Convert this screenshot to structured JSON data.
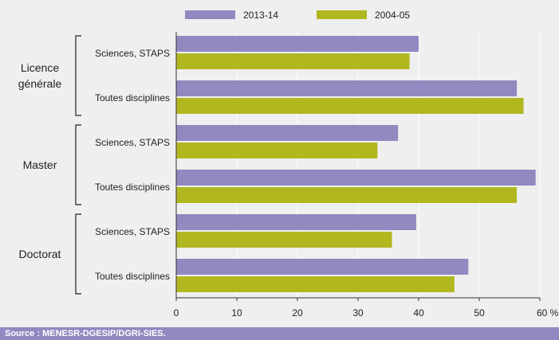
{
  "colors": {
    "series_2013": "#9189c0",
    "series_2004": "#b1b81f",
    "background": "#efefef",
    "grid": "#ffffff",
    "axis": "#333333",
    "source_bar": "#9189c0"
  },
  "source": "Source : MENESR-DGESIP/DGRI-SIES.",
  "chart_data": {
    "type": "bar",
    "orientation": "horizontal",
    "groups": [
      {
        "label": [
          "Licence",
          "générale"
        ],
        "categories": [
          "Sciences, STAPS",
          "Toutes disciplines"
        ]
      },
      {
        "label": [
          "Master"
        ],
        "categories": [
          "Sciences, STAPS",
          "Toutes disciplines"
        ]
      },
      {
        "label": [
          "Doctorat"
        ],
        "categories": [
          "Sciences, STAPS",
          "Toutes disciplines"
        ]
      }
    ],
    "categories": [
      "Sciences, STAPS",
      "Toutes disciplines",
      "Sciences, STAPS",
      "Toutes disciplines",
      "Sciences, STAPS",
      "Toutes disciplines"
    ],
    "series": [
      {
        "name": "2013-14",
        "values": [
          40,
          56.2,
          36.6,
          59.3,
          39.6,
          48.2
        ]
      },
      {
        "name": "2004-05",
        "values": [
          38.5,
          57.3,
          33.2,
          56.2,
          35.6,
          45.9
        ]
      }
    ],
    "xlim": [
      0,
      60
    ],
    "xticks": [
      0,
      10,
      20,
      30,
      40,
      50,
      60
    ],
    "xtick_labels": [
      "0",
      "10",
      "20",
      "30",
      "40",
      "50",
      "60 %"
    ],
    "grid": true,
    "legend_position": "top"
  }
}
